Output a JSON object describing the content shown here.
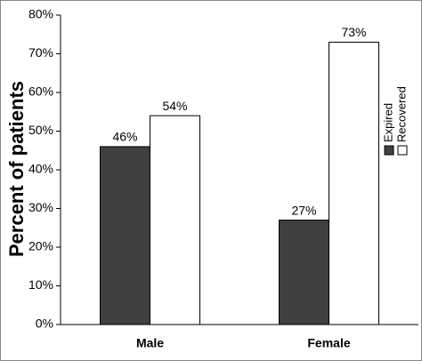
{
  "chart_data": {
    "type": "bar",
    "categories": [
      "Male",
      "Female"
    ],
    "y_label": "Percent of patients",
    "series": [
      {
        "name": "Expired",
        "color": "#404040",
        "values": [
          46,
          27
        ],
        "value_labels": [
          "46%",
          "27%"
        ]
      },
      {
        "name": "Recovered",
        "color": "#ffffff",
        "values": [
          54,
          73
        ],
        "value_labels": [
          "54%",
          "73%"
        ]
      }
    ],
    "ylim": [
      0,
      80
    ],
    "yticks": [
      {
        "value": 0,
        "label": "0%"
      },
      {
        "value": 10,
        "label": "10%"
      },
      {
        "value": 20,
        "label": "20%"
      },
      {
        "value": 30,
        "label": "30%"
      },
      {
        "value": 40,
        "label": "40%"
      },
      {
        "value": 50,
        "label": "50%"
      },
      {
        "value": 60,
        "label": "60%"
      },
      {
        "value": 70,
        "label": "70%"
      },
      {
        "value": 80,
        "label": "80%"
      }
    ],
    "legend": "right"
  }
}
